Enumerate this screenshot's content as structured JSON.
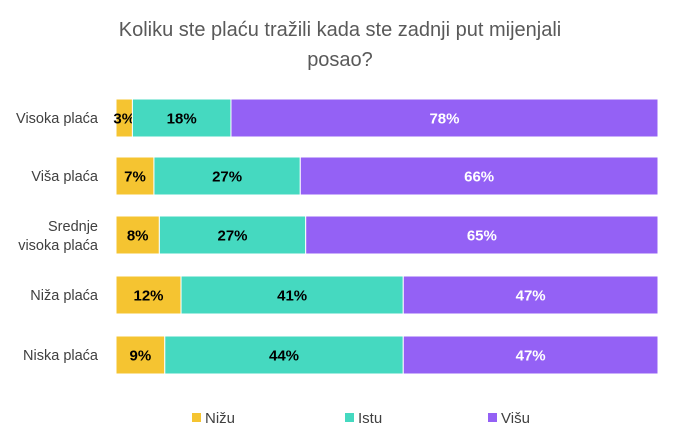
{
  "chart_data": {
    "type": "bar",
    "orientation": "horizontal",
    "stacked": "percent",
    "title": "Koliku ste plaću tražili kada ste zadnji put mijenjali posao?",
    "categories": [
      "Visoka plaća",
      "Viša plaća",
      "Srednje visoka plaća",
      "Niža plaća",
      "Niska plaća"
    ],
    "series": [
      {
        "name": "Nižu",
        "color": "#F5C431",
        "label_color": "#000000",
        "values": [
          3,
          7,
          8,
          12,
          9
        ],
        "labels": [
          "3%",
          "7%",
          "8%",
          "12%",
          "9%"
        ]
      },
      {
        "name": "Istu",
        "color": "#45D9C0",
        "label_color": "#000000",
        "values": [
          18,
          27,
          27,
          41,
          44
        ],
        "labels": [
          "18%",
          "27%",
          "27%",
          "41%",
          "44%"
        ]
      },
      {
        "name": "Višu",
        "color": "#9461F5",
        "label_color": "#FFFFFF",
        "values": [
          78,
          66,
          65,
          47,
          47
        ],
        "labels": [
          "78%",
          "66%",
          "65%",
          "47%",
          "47%"
        ]
      }
    ],
    "grid": false,
    "legend_position": "bottom"
  }
}
